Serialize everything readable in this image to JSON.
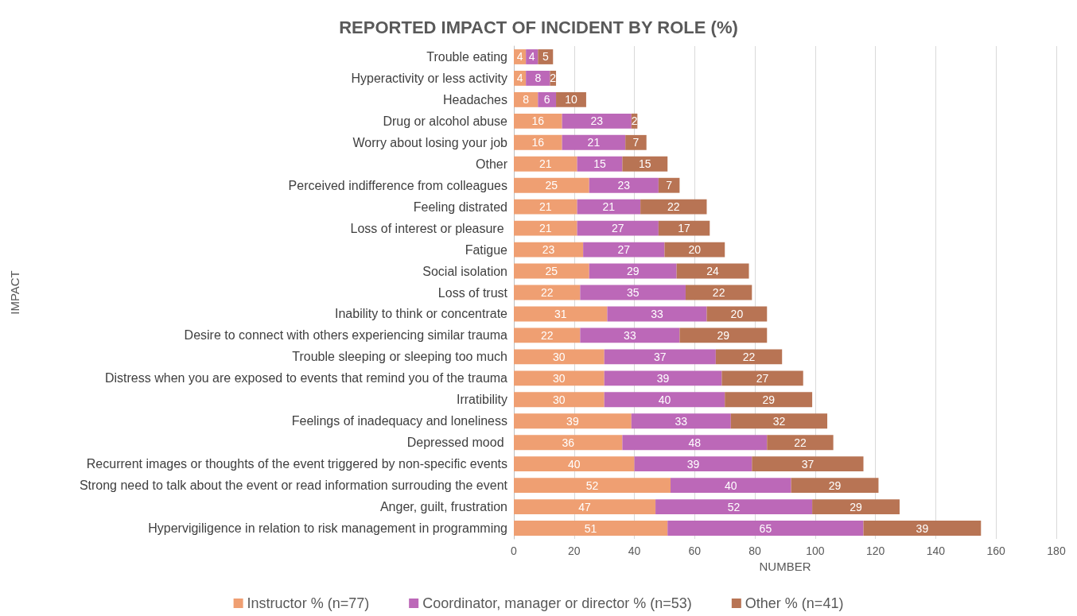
{
  "chart_data": {
    "type": "bar",
    "title": "REPORTED IMPACT OF INCIDENT BY ROLE (%)",
    "xlabel": "NUMBER",
    "ylabel": "IMPACT",
    "orientation": "horizontal",
    "stacked": true,
    "data_labels": true,
    "grid": "x",
    "legend": "bottom",
    "xlim": [
      0,
      180
    ],
    "xticks": [
      0,
      20,
      40,
      60,
      80,
      100,
      120,
      140,
      160,
      180
    ],
    "categories": [
      "Trouble eating",
      "Hyperactivity or less activity",
      "Headaches",
      "Drug or alcohol abuse",
      "Worry about losing your job",
      "Other",
      "Perceived indifference from colleagues",
      "Feeling distrated",
      "Loss of interest or pleasure ",
      "Fatigue",
      "Social isolation",
      "Loss of trust",
      "Inability to think or concentrate",
      "Desire to connect with others experiencing similar trauma",
      "Trouble sleeping or sleeping too much",
      "Distress when you are exposed to events that remind you of the trauma",
      "Irratibility",
      "Feelings of inadequacy and loneliness",
      "Depressed mood ",
      "Recurrent images or thoughts of the event triggered by non-specific events",
      "Strong need to talk about the event or read information surrouding the event",
      "Anger, guilt, frustration",
      "Hypervigiligence in relation to risk management in programming"
    ],
    "series": [
      {
        "name": "Instructor % (n=77)",
        "color": "#ef9f72",
        "values": [
          4,
          4,
          8,
          16,
          16,
          21,
          25,
          21,
          21,
          23,
          25,
          22,
          31,
          22,
          30,
          30,
          30,
          39,
          36,
          40,
          52,
          47,
          51
        ]
      },
      {
        "name": "Coordinator, manager or director % (n=53)",
        "color": "#bc68b8",
        "values": [
          4,
          8,
          6,
          23,
          21,
          15,
          23,
          21,
          27,
          27,
          29,
          35,
          33,
          33,
          37,
          39,
          40,
          33,
          48,
          39,
          40,
          52,
          65
        ]
      },
      {
        "name": "Other % (n=41)",
        "color": "#b87454",
        "values": [
          5,
          2,
          10,
          2,
          7,
          15,
          7,
          22,
          17,
          20,
          24,
          22,
          20,
          29,
          22,
          27,
          29,
          32,
          22,
          37,
          29,
          29,
          39
        ]
      }
    ]
  }
}
